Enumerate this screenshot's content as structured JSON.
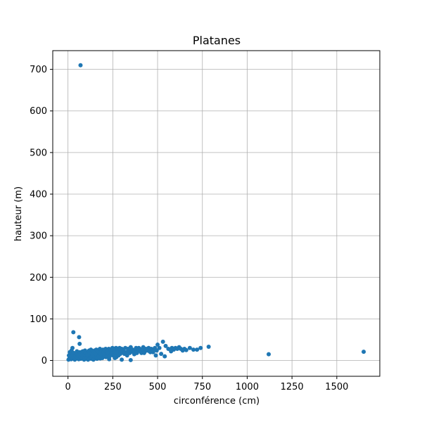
{
  "chart_data": {
    "type": "scatter",
    "title": "Platanes",
    "xlabel": "circonférence (cm)",
    "ylabel": "hauteur (m)",
    "xlim": [
      -85,
      1740
    ],
    "ylim": [
      -38,
      745
    ],
    "xticks": [
      0,
      250,
      500,
      750,
      1000,
      1250,
      1500
    ],
    "yticks": [
      0,
      100,
      200,
      300,
      400,
      500,
      600,
      700
    ],
    "grid": true,
    "color": "#1f77b4",
    "series": [
      {
        "points": [
          [
            70,
            710
          ],
          [
            30,
            68
          ],
          [
            62,
            56
          ],
          [
            65,
            40
          ],
          [
            25,
            30
          ],
          [
            20,
            24
          ],
          [
            10,
            20
          ],
          [
            5,
            12
          ],
          [
            8,
            5
          ],
          [
            3,
            2
          ],
          [
            15,
            15
          ],
          [
            40,
            10
          ],
          [
            55,
            18
          ],
          [
            80,
            12
          ],
          [
            100,
            8
          ],
          [
            120,
            15
          ],
          [
            140,
            18
          ],
          [
            160,
            20
          ],
          [
            180,
            22
          ],
          [
            200,
            24
          ],
          [
            220,
            25
          ],
          [
            250,
            26
          ],
          [
            280,
            27
          ],
          [
            300,
            28
          ],
          [
            320,
            30
          ],
          [
            350,
            32
          ],
          [
            380,
            30
          ],
          [
            400,
            28
          ],
          [
            420,
            32
          ],
          [
            450,
            30
          ],
          [
            480,
            26
          ],
          [
            500,
            38
          ],
          [
            510,
            30
          ],
          [
            530,
            45
          ],
          [
            545,
            35
          ],
          [
            560,
            28
          ],
          [
            575,
            22
          ],
          [
            600,
            30
          ],
          [
            620,
            32
          ],
          [
            650,
            28
          ],
          [
            660,
            25
          ],
          [
            700,
            26
          ],
          [
            740,
            30
          ],
          [
            785,
            33
          ],
          [
            1120,
            15
          ],
          [
            1650,
            21
          ],
          [
            300,
            2
          ],
          [
            350,
            1
          ],
          [
            180,
            5
          ],
          [
            230,
            3
          ],
          [
            270,
            8
          ],
          [
            330,
            12
          ],
          [
            370,
            15
          ],
          [
            410,
            18
          ],
          [
            460,
            20
          ],
          [
            490,
            12
          ],
          [
            520,
            16
          ],
          [
            540,
            10
          ],
          [
            60,
            3
          ],
          [
            90,
            2
          ],
          [
            130,
            4
          ],
          [
            150,
            6
          ],
          [
            200,
            10
          ],
          [
            240,
            14
          ],
          [
            260,
            18
          ],
          [
            290,
            20
          ],
          [
            310,
            22
          ],
          [
            340,
            24
          ],
          [
            360,
            26
          ],
          [
            390,
            24
          ],
          [
            430,
            22
          ],
          [
            470,
            24
          ],
          [
            110,
            20
          ],
          [
            170,
            25
          ],
          [
            210,
            28
          ],
          [
            190,
            15
          ],
          [
            125,
            10
          ],
          [
            75,
            8
          ],
          [
            45,
            5
          ],
          [
            35,
            14
          ],
          [
            50,
            22
          ],
          [
            85,
            16
          ],
          [
            95,
            24
          ],
          [
            105,
            12
          ],
          [
            115,
            6
          ],
          [
            135,
            22
          ],
          [
            145,
            12
          ],
          [
            155,
            8
          ],
          [
            165,
            14
          ],
          [
            175,
            18
          ],
          [
            185,
            10
          ],
          [
            195,
            26
          ],
          [
            205,
            20
          ],
          [
            215,
            16
          ],
          [
            225,
            12
          ],
          [
            235,
            22
          ],
          [
            245,
            20
          ],
          [
            255,
            16
          ],
          [
            265,
            24
          ],
          [
            275,
            14
          ],
          [
            285,
            22
          ],
          [
            295,
            18
          ],
          [
            305,
            26
          ],
          [
            315,
            16
          ],
          [
            325,
            20
          ],
          [
            335,
            28
          ],
          [
            345,
            18
          ],
          [
            355,
            22
          ],
          [
            365,
            20
          ],
          [
            375,
            26
          ],
          [
            385,
            18
          ],
          [
            395,
            30
          ],
          [
            405,
            22
          ],
          [
            415,
            26
          ],
          [
            425,
            18
          ],
          [
            435,
            28
          ],
          [
            445,
            24
          ],
          [
            455,
            22
          ],
          [
            465,
            28
          ],
          [
            475,
            20
          ],
          [
            485,
            30
          ],
          [
            495,
            24
          ],
          [
            580,
            30
          ],
          [
            590,
            26
          ],
          [
            610,
            28
          ],
          [
            630,
            28
          ],
          [
            640,
            24
          ],
          [
            680,
            30
          ],
          [
            720,
            26
          ],
          [
            12,
            8
          ],
          [
            18,
            3
          ],
          [
            22,
            10
          ],
          [
            28,
            6
          ],
          [
            32,
            18
          ],
          [
            38,
            2
          ],
          [
            42,
            12
          ],
          [
            48,
            16
          ],
          [
            52,
            8
          ],
          [
            58,
            12
          ],
          [
            66,
            20
          ],
          [
            72,
            4
          ],
          [
            78,
            14
          ],
          [
            82,
            22
          ],
          [
            88,
            10
          ],
          [
            92,
            6
          ],
          [
            98,
            18
          ],
          [
            102,
            4
          ],
          [
            108,
            14
          ],
          [
            112,
            2
          ],
          [
            118,
            24
          ],
          [
            122,
            18
          ],
          [
            128,
            26
          ],
          [
            132,
            8
          ],
          [
            138,
            14
          ],
          [
            142,
            2
          ],
          [
            148,
            24
          ],
          [
            152,
            16
          ],
          [
            158,
            26
          ],
          [
            162,
            4
          ],
          [
            168,
            22
          ],
          [
            172,
            10
          ],
          [
            178,
            28
          ],
          [
            182,
            16
          ],
          [
            188,
            24
          ],
          [
            192,
            6
          ],
          [
            198,
            20
          ],
          [
            202,
            14
          ],
          [
            208,
            26
          ],
          [
            212,
            8
          ],
          [
            218,
            22
          ],
          [
            222,
            18
          ],
          [
            228,
            28
          ],
          [
            232,
            10
          ],
          [
            238,
            26
          ],
          [
            242,
            16
          ],
          [
            248,
            30
          ],
          [
            252,
            12
          ],
          [
            258,
            28
          ],
          [
            262,
            6
          ],
          [
            268,
            30
          ],
          [
            272,
            20
          ],
          [
            278,
            28
          ],
          [
            282,
            12
          ],
          [
            288,
            30
          ],
          [
            292,
            16
          ],
          [
            298,
            24
          ]
        ]
      }
    ]
  }
}
